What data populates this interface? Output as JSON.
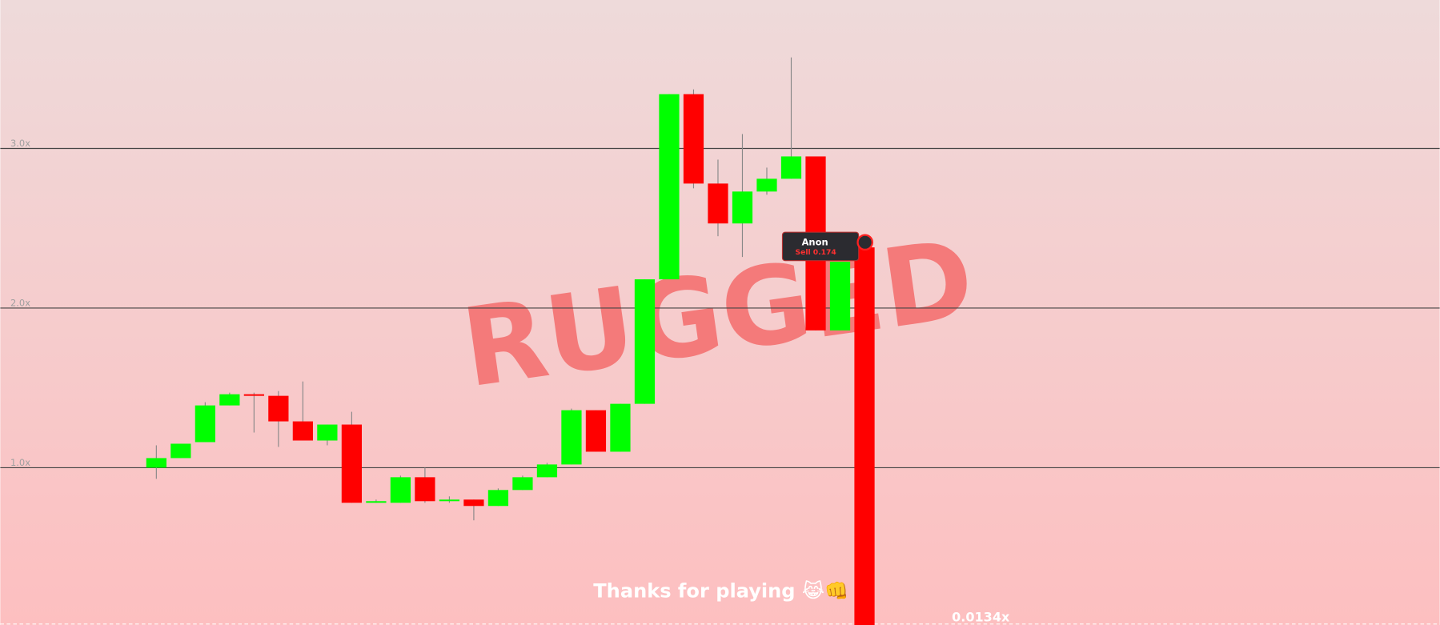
{
  "chart_data": {
    "type": "candlestick",
    "watermark": "RUGGED",
    "footer_text": "Thanks for playing 😹👊",
    "current_label": "0.0134x",
    "trade": {
      "user": "Anon",
      "action": "Sell 0.174"
    },
    "up_color": "#00ff00",
    "down_color": "#ff0000",
    "open": [
      1.0,
      1.06,
      1.16,
      1.39,
      1.46,
      1.45,
      1.29,
      1.17,
      1.27,
      0.78,
      0.78,
      0.94,
      0.79,
      0.8,
      0.76,
      0.86,
      0.94,
      1.02,
      1.36,
      1.1,
      1.4,
      2.18,
      3.34,
      2.78,
      2.53,
      2.73,
      2.81,
      2.95,
      1.86,
      2.38
    ],
    "high": [
      1.14,
      1.15,
      1.41,
      1.47,
      1.47,
      1.48,
      1.54,
      1.27,
      1.35,
      0.8,
      0.95,
      1.0,
      0.82,
      0.8,
      0.87,
      0.95,
      1.03,
      1.37,
      1.36,
      1.4,
      2.18,
      3.34,
      3.37,
      2.93,
      3.09,
      2.88,
      3.57,
      2.95,
      2.29,
      2.38
    ],
    "low": [
      0.93,
      1.06,
      1.16,
      1.39,
      1.22,
      1.13,
      1.17,
      1.14,
      0.78,
      0.78,
      0.78,
      0.78,
      0.78,
      0.67,
      0.76,
      0.86,
      0.94,
      1.02,
      1.1,
      1.1,
      1.4,
      2.18,
      2.75,
      2.45,
      2.32,
      2.71,
      2.81,
      1.86,
      1.86,
      0.0134
    ],
    "close": [
      1.06,
      1.15,
      1.39,
      1.46,
      1.45,
      1.29,
      1.17,
      1.27,
      0.78,
      0.79,
      0.94,
      0.79,
      0.8,
      0.76,
      0.86,
      0.94,
      1.02,
      1.36,
      1.1,
      1.4,
      2.18,
      3.34,
      2.78,
      2.53,
      2.73,
      2.81,
      2.95,
      1.86,
      2.29,
      0.0134
    ],
    "ylim": [
      0.02,
      3.93
    ],
    "yticks": [
      {
        "value": 1,
        "label": "1.0x"
      },
      {
        "value": 2,
        "label": "2.0x"
      },
      {
        "value": 3,
        "label": "3.0x"
      }
    ],
    "grid": true
  }
}
